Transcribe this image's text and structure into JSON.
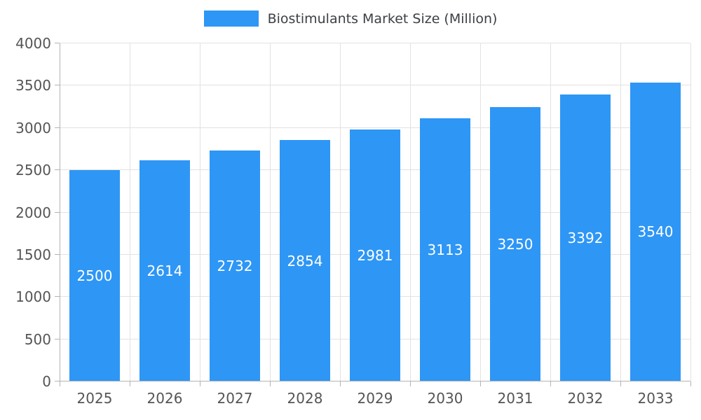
{
  "legend": {
    "label": "Biostimulants Market Size (Million)",
    "swatch_color": "#2E96F5"
  },
  "chart_data": {
    "type": "bar",
    "title": "Biostimulants Market Size (Million)",
    "series_name": "Biostimulants Market Size (Million)",
    "categories": [
      "2025",
      "2026",
      "2027",
      "2028",
      "2029",
      "2030",
      "2031",
      "2032",
      "2033"
    ],
    "values": [
      2500,
      2614,
      2732,
      2854,
      2981,
      3113,
      3250,
      3392,
      3540
    ],
    "xlabel": "",
    "ylabel": "",
    "ylim": [
      0,
      4000
    ],
    "yticks": [
      0,
      500,
      1000,
      1500,
      2000,
      2500,
      3000,
      3500,
      4000
    ],
    "grid": true,
    "legend_position": "top",
    "bar_color": "#2E96F5",
    "bar_label_color": "#ffffff",
    "axis_color": "#b3b3b3",
    "gridline_color": "#e2e2e2",
    "tick_label_color": "#555555"
  }
}
